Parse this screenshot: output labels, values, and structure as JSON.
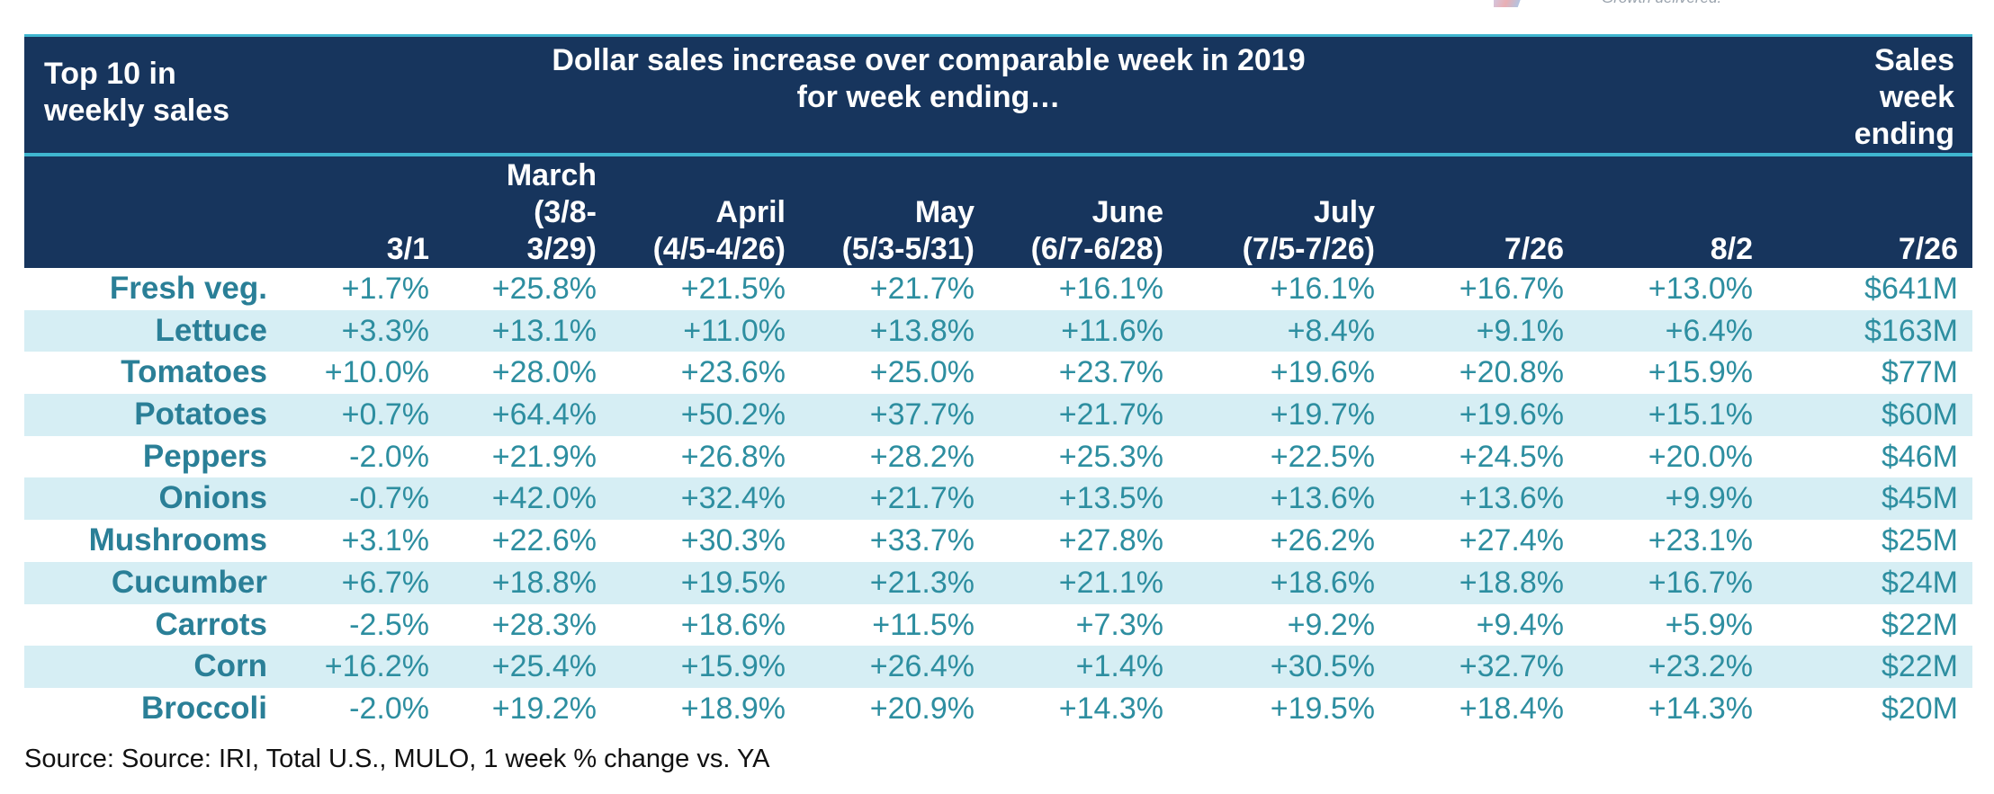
{
  "brand": {
    "tagline": "Growth delivered."
  },
  "header": {
    "left_line1": "Top 10 in",
    "left_line2": "weekly sales",
    "center_line1": "Dollar sales increase over comparable week in 2019",
    "center_line2": "for week ending…",
    "right_line1": "Sales",
    "right_line2": "week",
    "right_line3": "ending"
  },
  "columns": [
    {
      "lines": [
        "3/1"
      ]
    },
    {
      "lines": [
        "March",
        "(3/8-",
        "3/29)"
      ]
    },
    {
      "lines": [
        "April",
        "(4/5-4/26)"
      ]
    },
    {
      "lines": [
        "May",
        "(5/3-5/31)"
      ]
    },
    {
      "lines": [
        "June",
        "(6/7-6/28)"
      ]
    },
    {
      "lines": [
        "July",
        "(7/5-7/26)"
      ]
    },
    {
      "lines": [
        "7/26"
      ]
    },
    {
      "lines": [
        "8/2"
      ]
    },
    {
      "lines": [
        "7/26"
      ]
    }
  ],
  "rows": [
    {
      "label": "Fresh veg.",
      "values": [
        "+1.7%",
        "+25.8%",
        "+21.5%",
        "+21.7%",
        "+16.1%",
        "+16.1%",
        "+16.7%",
        "+13.0%",
        "$641M"
      ]
    },
    {
      "label": "Lettuce",
      "values": [
        "+3.3%",
        "+13.1%",
        "+11.0%",
        "+13.8%",
        "+11.6%",
        "+8.4%",
        "+9.1%",
        "+6.4%",
        "$163M"
      ]
    },
    {
      "label": "Tomatoes",
      "values": [
        "+10.0%",
        "+28.0%",
        "+23.6%",
        "+25.0%",
        "+23.7%",
        "+19.6%",
        "+20.8%",
        "+15.9%",
        "$77M"
      ]
    },
    {
      "label": "Potatoes",
      "values": [
        "+0.7%",
        "+64.4%",
        "+50.2%",
        "+37.7%",
        "+21.7%",
        "+19.7%",
        "+19.6%",
        "+15.1%",
        "$60M"
      ]
    },
    {
      "label": "Peppers",
      "values": [
        "-2.0%",
        "+21.9%",
        "+26.8%",
        "+28.2%",
        "+25.3%",
        "+22.5%",
        "+24.5%",
        "+20.0%",
        "$46M"
      ]
    },
    {
      "label": "Onions",
      "values": [
        "-0.7%",
        "+42.0%",
        "+32.4%",
        "+21.7%",
        "+13.5%",
        "+13.6%",
        "+13.6%",
        "+9.9%",
        "$45M"
      ]
    },
    {
      "label": "Mushrooms",
      "values": [
        "+3.1%",
        "+22.6%",
        "+30.3%",
        "+33.7%",
        "+27.8%",
        "+26.2%",
        "+27.4%",
        "+23.1%",
        "$25M"
      ]
    },
    {
      "label": "Cucumber",
      "values": [
        "+6.7%",
        "+18.8%",
        "+19.5%",
        "+21.3%",
        "+21.1%",
        "+18.6%",
        "+18.8%",
        "+16.7%",
        "$24M"
      ]
    },
    {
      "label": "Carrots",
      "values": [
        "-2.5%",
        "+28.3%",
        "+18.6%",
        "+11.5%",
        "+7.3%",
        "+9.2%",
        "+9.4%",
        "+5.9%",
        "$22M"
      ]
    },
    {
      "label": "Corn",
      "values": [
        "+16.2%",
        "+25.4%",
        "+15.9%",
        "+26.4%",
        "+1.4%",
        "+30.5%",
        "+32.7%",
        "+23.2%",
        "$22M"
      ]
    },
    {
      "label": "Broccoli",
      "values": [
        "-2.0%",
        "+19.2%",
        "+18.9%",
        "+20.9%",
        "+14.3%",
        "+19.5%",
        "+18.4%",
        "+14.3%",
        "$20M"
      ]
    }
  ],
  "source": "Source: Source: IRI, Total U.S., MULO, 1 week % change vs. YA",
  "colors": {
    "header_bg": "#17355d",
    "accent_rule": "#3fb6cf",
    "alt_row": "#d6eef4",
    "value_text": "#2d8ea0"
  }
}
